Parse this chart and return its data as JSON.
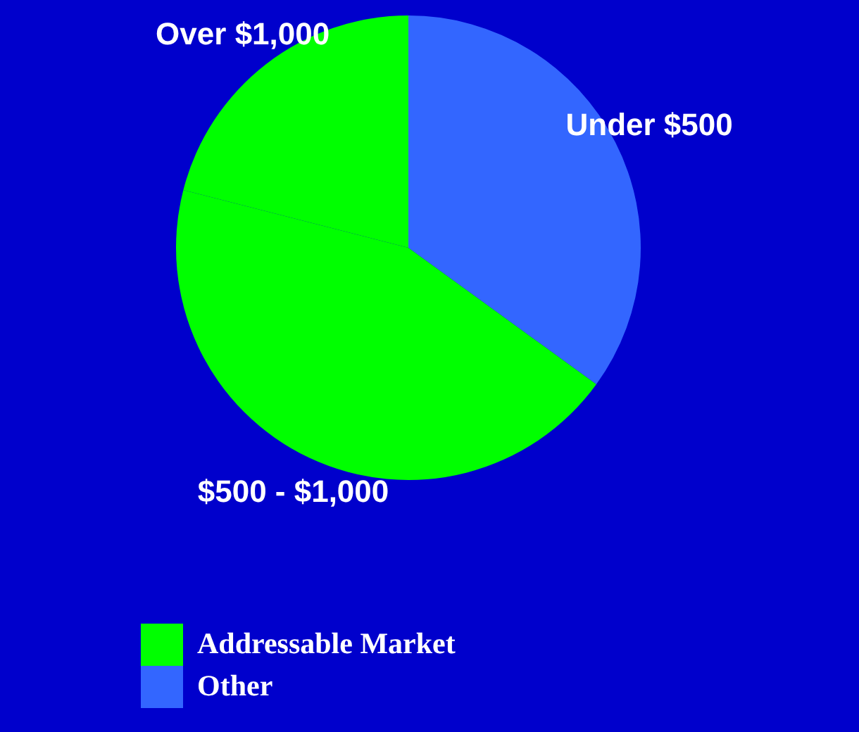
{
  "chart_data": {
    "type": "pie",
    "categories": [
      "Under $500",
      "$500 - $1,000",
      "Over $1,000"
    ],
    "values": [
      35,
      44,
      21
    ],
    "colors": [
      "#3366ff",
      "#00ff00",
      "#00ff00"
    ],
    "annotations": [
      "Addressable Market",
      "Other"
    ]
  }
}
